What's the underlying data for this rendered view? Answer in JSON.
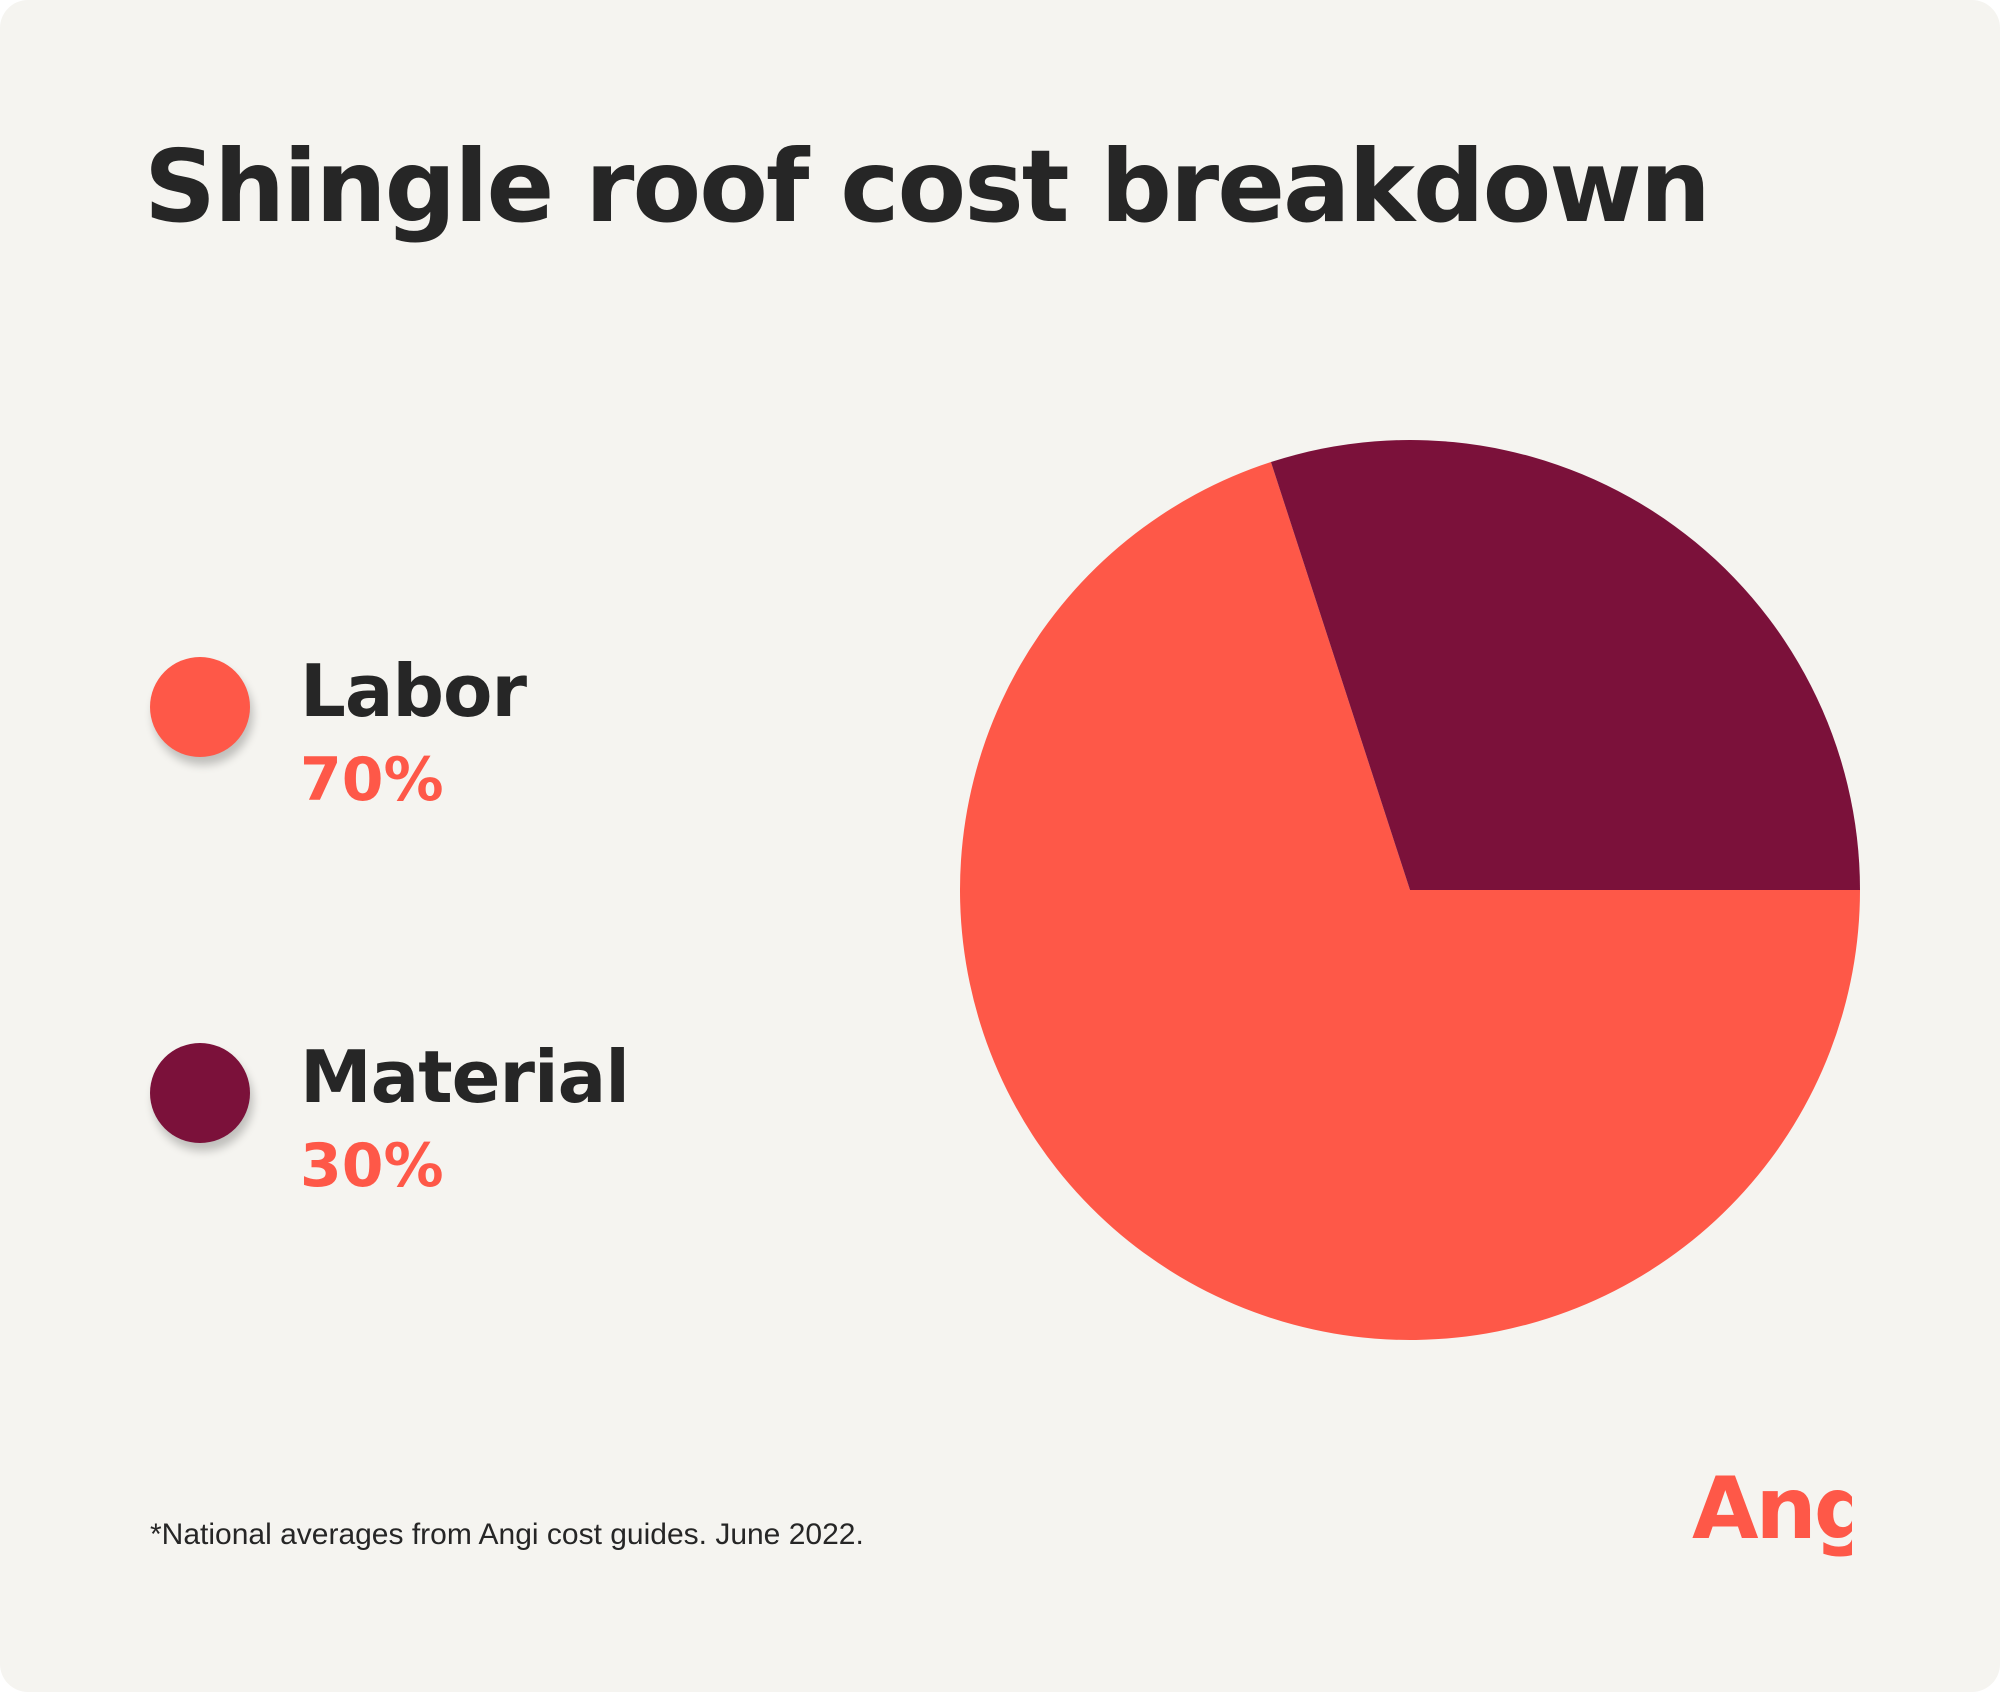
{
  "title": "Shingle roof cost breakdown",
  "colors": {
    "background": "#f5f4f0",
    "labor": "#fe5848",
    "material": "#7b113a",
    "text": "#262626",
    "accent": "#fe5848"
  },
  "legend": [
    {
      "label": "Labor",
      "value": "70%"
    },
    {
      "label": "Material",
      "value": "30%"
    }
  ],
  "chart_data": {
    "type": "pie",
    "title": "Shingle roof cost breakdown",
    "categories": [
      "Labor",
      "Material"
    ],
    "values": [
      70,
      30
    ],
    "unit": "%",
    "colors": [
      "#fe5848",
      "#7b113a"
    ],
    "legend_position": "left"
  },
  "footnote": "*National averages from Angi cost guides. June 2022.",
  "logo": {
    "text": "Angi"
  }
}
